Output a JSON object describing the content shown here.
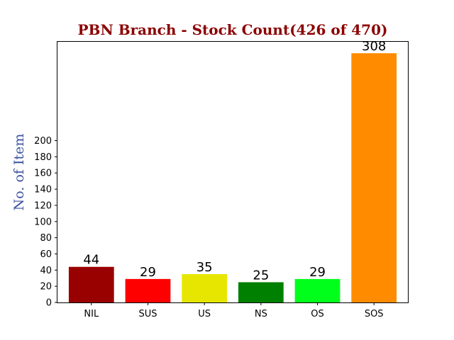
{
  "chart_data": {
    "type": "bar",
    "title": "PBN Branch - Stock Count(426 of 470)",
    "title_color": "#8b0000",
    "xlabel": "",
    "ylabel": "No. of Item",
    "ylabel_color": "#3a52a0",
    "categories": [
      "NIL",
      "SUS",
      "US",
      "NS",
      "OS",
      "SOS"
    ],
    "values": [
      44,
      29,
      35,
      25,
      29,
      308
    ],
    "colors": [
      "#990000",
      "#ff0000",
      "#e6e600",
      "#008000",
      "#00ff1a",
      "#ff8c00"
    ],
    "data_labels": [
      "44",
      "29",
      "35",
      "25",
      "29",
      "308"
    ],
    "yticks": [
      0,
      20,
      40,
      60,
      80,
      100,
      120,
      140,
      160,
      180,
      200
    ],
    "ylim": [
      0,
      323
    ],
    "grid": false,
    "legend": "none"
  }
}
